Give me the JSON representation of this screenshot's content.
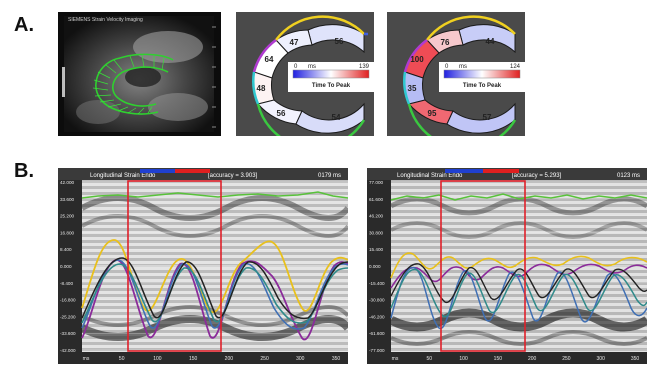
{
  "labels": {
    "a": "A.",
    "b": "B."
  },
  "echo": {
    "header": "SIEMENS  Strain Velocity Imaging"
  },
  "bullseye_1": {
    "segments": [
      "56",
      "47",
      "64",
      "48",
      "56",
      "54"
    ],
    "scale_min": "0",
    "scale_unit": "ms",
    "scale_max": "139",
    "scale_caption": "Time To Peak"
  },
  "bullseye_2": {
    "segments": [
      "44",
      "76",
      "100",
      "35",
      "95",
      "57"
    ],
    "scale_min": "0",
    "scale_unit": "ms",
    "scale_max": "124",
    "scale_caption": "Time To Peak"
  },
  "strain_left": {
    "title": "Longitudinal Strain Endo",
    "accuracy": "[accuracy = 3.903]",
    "time": "0179 ms",
    "y_ticks": [
      "42.000",
      "33.600",
      "25.200",
      "16.800",
      "8.400",
      "0.000",
      "-8.400",
      "-16.800",
      "-25.200",
      "-33.600",
      "-42.000"
    ],
    "x_ticks": [
      "ms",
      "50",
      "100",
      "150",
      "200",
      "250",
      "300",
      "350"
    ],
    "colors": {
      "yellow": "#e8c01c",
      "purple": "#8b2b9a",
      "blue": "#3f6fb4",
      "teal": "#2f8a8a",
      "black": "#222222",
      "green": "#58c23a",
      "red": "#e0202a"
    }
  },
  "strain_right": {
    "title": "Longitudinal Strain Endo",
    "accuracy": "[accuracy = 5.293]",
    "time": "0123 ms",
    "y_ticks": [
      "77.000",
      "61.600",
      "46.200",
      "30.800",
      "15.400",
      "0.000",
      "-15.400",
      "-30.800",
      "-46.200",
      "-61.600",
      "-77.000"
    ],
    "x_ticks": [
      "ms",
      "50",
      "100",
      "150",
      "200",
      "250",
      "300",
      "350"
    ]
  }
}
